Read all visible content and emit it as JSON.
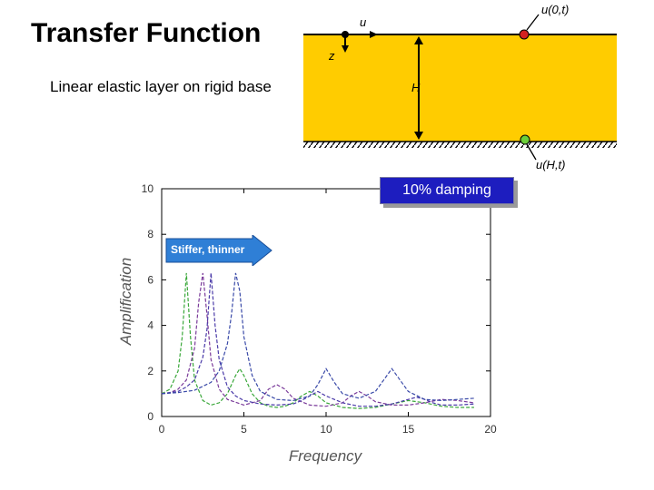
{
  "title": "Transfer Function",
  "subtitle": "Linear elastic layer on rigid base",
  "diagram": {
    "u_label": "u",
    "z_label": "z",
    "h_label": "H",
    "top_point_label": "u(0,t)",
    "bottom_point_label": "u(H,t)",
    "layer_color": "#ffcc00",
    "top_point_color": "#d42020",
    "bottom_point_color": "#6ccf3a"
  },
  "annotations": {
    "damping": "10% damping",
    "arrow": "Stiffer, thinner"
  },
  "chart_data": {
    "type": "line",
    "title": "",
    "xlabel": "Frequency",
    "ylabel": "Amplification",
    "xlim": [
      0,
      20
    ],
    "ylim": [
      0,
      10
    ],
    "xticks": [
      0,
      5,
      10,
      15,
      20
    ],
    "yticks": [
      0,
      2,
      4,
      6,
      8,
      10
    ],
    "grid": false,
    "series": [
      {
        "color": "#3aa83a",
        "x": [
          0,
          0.5,
          1.0,
          1.25,
          1.5,
          1.75,
          2.0,
          2.5,
          3.0,
          3.5,
          4.0,
          4.5,
          4.75,
          5.0,
          5.5,
          6.0,
          6.5,
          7.0,
          7.5,
          8.0,
          8.5,
          9.0,
          9.5,
          10.0,
          11.0,
          12.0,
          13.0,
          14.0,
          15.0,
          16.0,
          17.0,
          18.0,
          19.0
        ],
        "y": [
          1.0,
          1.2,
          2.0,
          3.5,
          6.3,
          3.5,
          1.6,
          0.7,
          0.5,
          0.6,
          1.0,
          1.8,
          2.1,
          1.8,
          1.0,
          0.6,
          0.45,
          0.4,
          0.45,
          0.6,
          0.9,
          1.1,
          0.9,
          0.6,
          0.4,
          0.35,
          0.4,
          0.55,
          0.7,
          0.6,
          0.45,
          0.4,
          0.4
        ]
      },
      {
        "color": "#7a3a9a",
        "x": [
          0,
          0.5,
          1.0,
          1.5,
          2.0,
          2.25,
          2.5,
          2.75,
          3.0,
          3.5,
          4.0,
          5.0,
          6.0,
          6.5,
          7.0,
          7.5,
          8.0,
          9.0,
          10.0,
          11.0,
          11.5,
          12.0,
          12.5,
          13.0,
          14.0,
          15.0,
          16.0,
          17.0,
          18.0,
          19.0
        ],
        "y": [
          1.0,
          1.05,
          1.2,
          1.6,
          3.0,
          5.0,
          6.3,
          4.5,
          2.5,
          1.2,
          0.75,
          0.5,
          0.7,
          1.2,
          1.4,
          1.2,
          0.8,
          0.5,
          0.45,
          0.6,
          0.9,
          1.1,
          0.9,
          0.65,
          0.5,
          0.5,
          0.6,
          0.75,
          0.7,
          0.6
        ]
      },
      {
        "color": "#4a3aa8",
        "x": [
          0,
          0.5,
          1.0,
          1.5,
          2.0,
          2.5,
          2.75,
          3.0,
          3.25,
          3.5,
          4.0,
          4.5,
          5.0,
          6.0,
          7.0,
          8.0,
          8.5,
          9.0,
          9.5,
          10.0,
          11.0,
          12.0,
          13.0,
          14.0,
          15.0,
          15.5,
          16.0,
          16.5,
          17.0,
          18.0,
          19.0
        ],
        "y": [
          1.0,
          1.05,
          1.1,
          1.3,
          1.6,
          2.6,
          3.8,
          6.3,
          4.0,
          2.5,
          1.3,
          0.9,
          0.7,
          0.55,
          0.5,
          0.55,
          0.7,
          0.9,
          1.1,
          0.9,
          0.6,
          0.45,
          0.45,
          0.55,
          0.75,
          0.85,
          0.75,
          0.6,
          0.5,
          0.5,
          0.55
        ]
      },
      {
        "color": "#3a4aa8",
        "x": [
          0,
          1.0,
          2.0,
          3.0,
          3.5,
          4.0,
          4.25,
          4.5,
          4.75,
          5.0,
          5.5,
          6.0,
          7.0,
          8.0,
          9.0,
          9.5,
          10.0,
          10.5,
          11.0,
          12.0,
          13.0,
          13.5,
          14.0,
          14.5,
          15.0,
          16.0,
          17.0,
          18.0,
          19.0
        ],
        "y": [
          1.0,
          1.05,
          1.15,
          1.5,
          2.0,
          3.2,
          4.5,
          6.3,
          5.5,
          3.5,
          1.8,
          1.1,
          0.75,
          0.7,
          0.9,
          1.4,
          2.1,
          1.5,
          1.0,
          0.8,
          1.1,
          1.6,
          2.1,
          1.6,
          1.1,
          0.75,
          0.7,
          0.75,
          0.8
        ]
      }
    ]
  }
}
